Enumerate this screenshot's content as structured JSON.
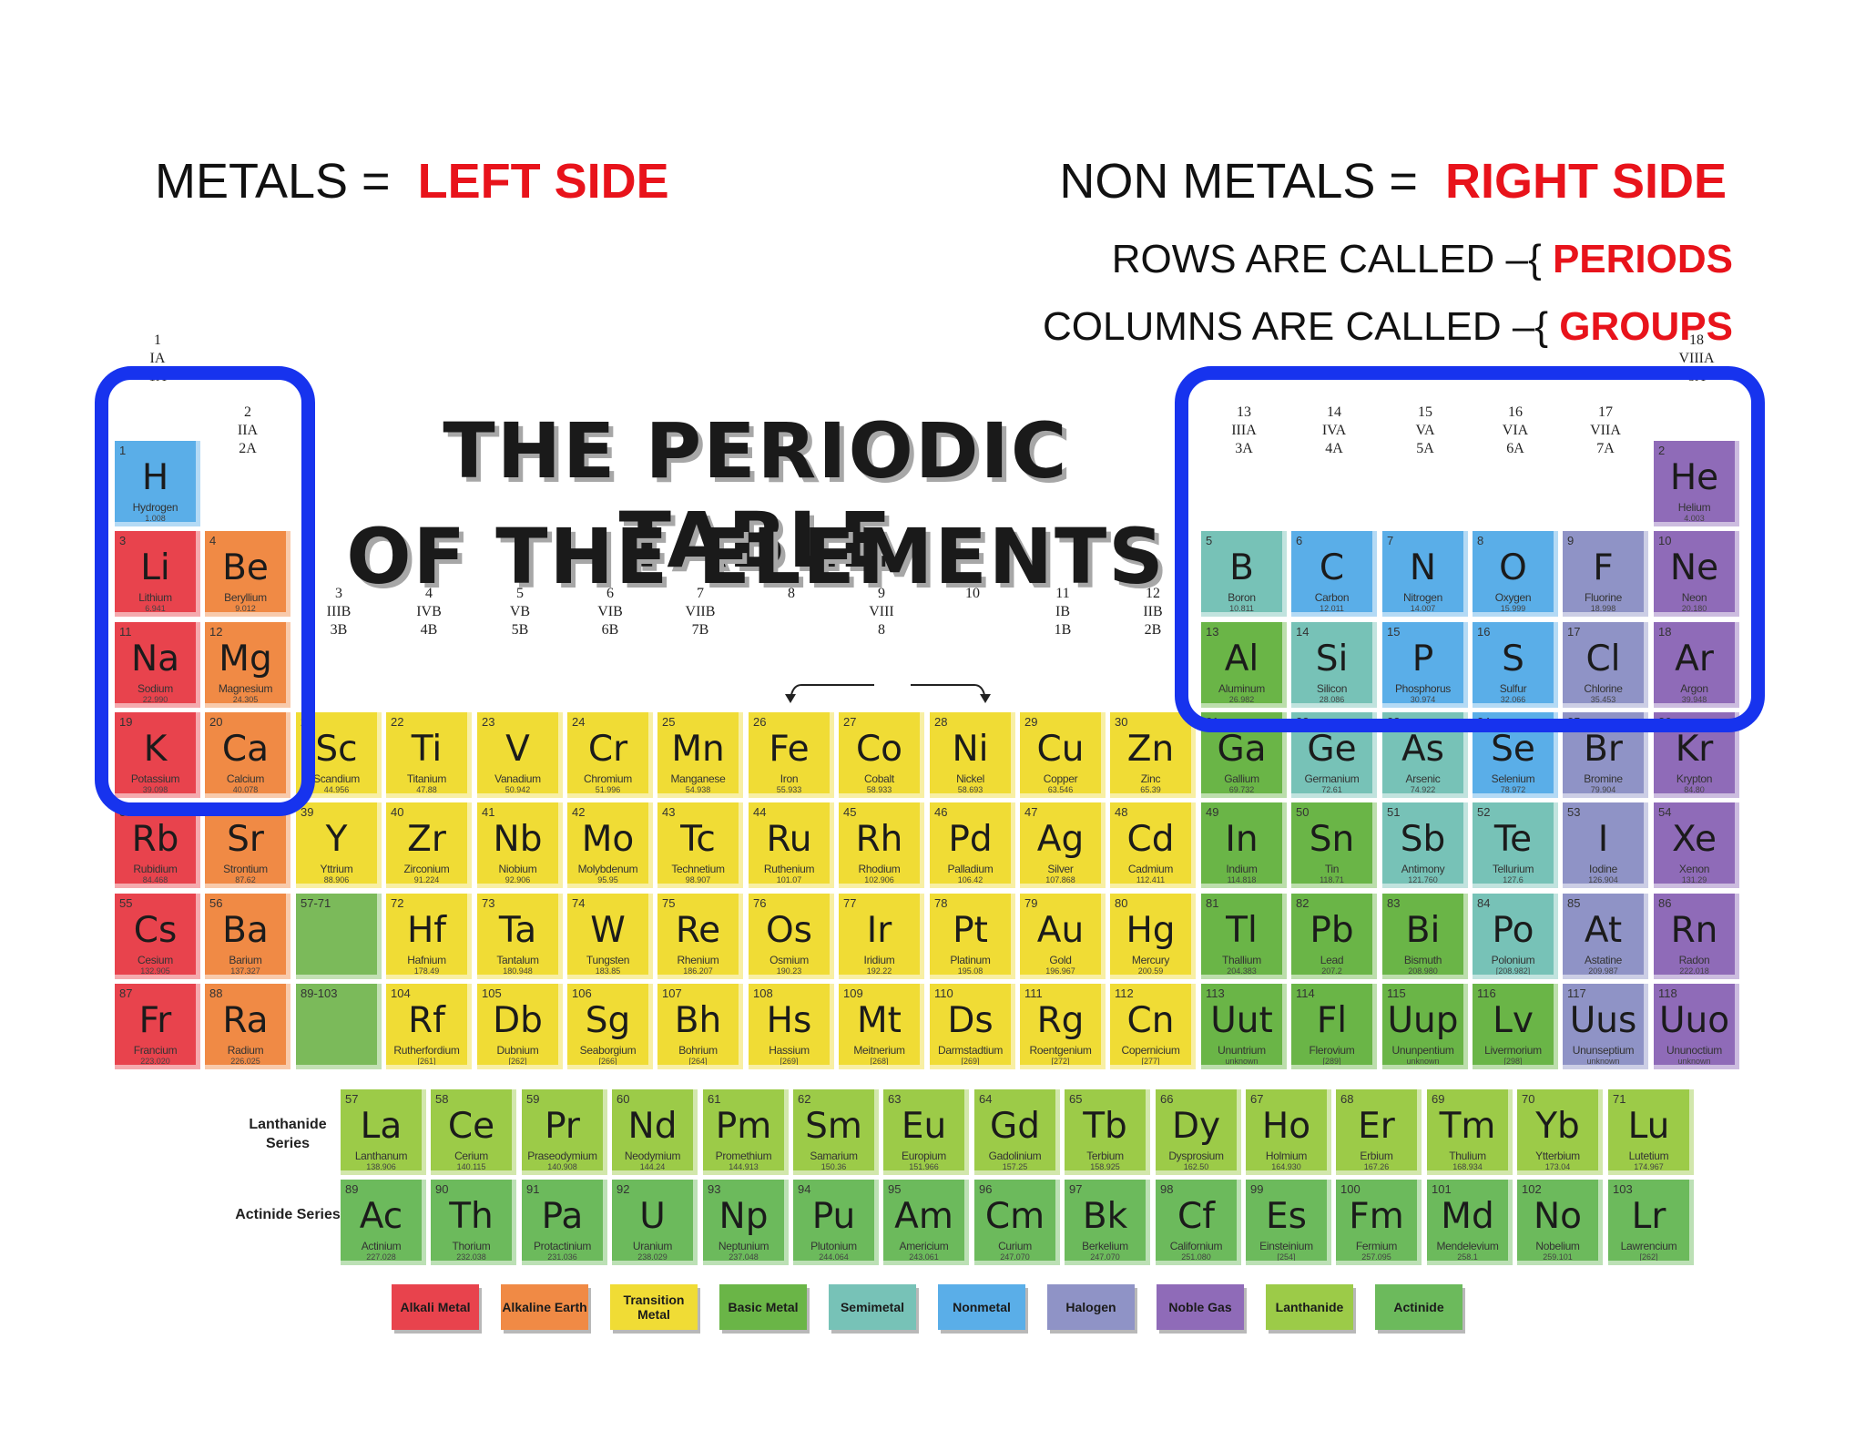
{
  "notes": {
    "metals_prefix": "METALS =",
    "metals_value": "LEFT SIDE",
    "nonmetals_prefix": "NON METALS =",
    "nonmetals_value": "RIGHT SIDE",
    "rows_prefix": "ROWS ARE CALLED –{",
    "rows_value": "PERIODS",
    "cols_prefix": "COLUMNS ARE CALLED –{",
    "cols_value": "GROUPS"
  },
  "title_line1": "THE PERIODIC TABLE",
  "title_line2": "OF THE ELEMENTS",
  "category_colors": {
    "alkali": "#e8434d",
    "alkaline": "#f08a45",
    "transition": "#f0dc35",
    "basic": "#6ab547",
    "semimetal": "#77c2b7",
    "nonmetal": "#5aaee8",
    "halogen": "#8f93c6",
    "noble": "#8f6bb8",
    "lanthanide": "#9ccb48",
    "actinide": "#6cba5c",
    "blank": "#7bba5a"
  },
  "group_labels": [
    {
      "col": 1,
      "row": 0,
      "lines": [
        "1",
        "IA",
        "1A"
      ]
    },
    {
      "col": 2,
      "row": 1,
      "lines": [
        "2",
        "IIA",
        "2A"
      ]
    },
    {
      "col": 3,
      "row": 3,
      "lines": [
        "3",
        "IIIB",
        "3B"
      ]
    },
    {
      "col": 4,
      "row": 3,
      "lines": [
        "4",
        "IVB",
        "4B"
      ]
    },
    {
      "col": 5,
      "row": 3,
      "lines": [
        "5",
        "VB",
        "5B"
      ]
    },
    {
      "col": 6,
      "row": 3,
      "lines": [
        "6",
        "VIB",
        "6B"
      ]
    },
    {
      "col": 7,
      "row": 3,
      "lines": [
        "7",
        "VIIB",
        "7B"
      ]
    },
    {
      "col": 8,
      "row": 3,
      "lines": [
        "8",
        "",
        ""
      ]
    },
    {
      "col": 9,
      "row": 3,
      "lines": [
        "9",
        "VIII",
        "8"
      ]
    },
    {
      "col": 10,
      "row": 3,
      "lines": [
        "10",
        "",
        ""
      ]
    },
    {
      "col": 11,
      "row": 3,
      "lines": [
        "11",
        "IB",
        "1B"
      ]
    },
    {
      "col": 12,
      "row": 3,
      "lines": [
        "12",
        "IIB",
        "2B"
      ]
    },
    {
      "col": 13,
      "row": 1,
      "lines": [
        "13",
        "IIIA",
        "3A"
      ]
    },
    {
      "col": 14,
      "row": 1,
      "lines": [
        "14",
        "IVA",
        "4A"
      ]
    },
    {
      "col": 15,
      "row": 1,
      "lines": [
        "15",
        "VA",
        "5A"
      ]
    },
    {
      "col": 16,
      "row": 1,
      "lines": [
        "16",
        "VIA",
        "6A"
      ]
    },
    {
      "col": 17,
      "row": 1,
      "lines": [
        "17",
        "VIIA",
        "7A"
      ]
    },
    {
      "col": 18,
      "row": 0,
      "lines": [
        "18",
        "VIIIA",
        "8A"
      ]
    }
  ],
  "elements": [
    {
      "n": "1",
      "s": "H",
      "name": "Hydrogen",
      "m": "1.008",
      "c": "nonmetal",
      "col": 1,
      "row": 1
    },
    {
      "n": "2",
      "s": "He",
      "name": "Helium",
      "m": "4.003",
      "c": "noble",
      "col": 18,
      "row": 1
    },
    {
      "n": "3",
      "s": "Li",
      "name": "Lithium",
      "m": "6.941",
      "c": "alkali",
      "col": 1,
      "row": 2
    },
    {
      "n": "4",
      "s": "Be",
      "name": "Beryllium",
      "m": "9.012",
      "c": "alkaline",
      "col": 2,
      "row": 2
    },
    {
      "n": "5",
      "s": "B",
      "name": "Boron",
      "m": "10.811",
      "c": "semimetal",
      "col": 13,
      "row": 2
    },
    {
      "n": "6",
      "s": "C",
      "name": "Carbon",
      "m": "12.011",
      "c": "nonmetal",
      "col": 14,
      "row": 2
    },
    {
      "n": "7",
      "s": "N",
      "name": "Nitrogen",
      "m": "14.007",
      "c": "nonmetal",
      "col": 15,
      "row": 2
    },
    {
      "n": "8",
      "s": "O",
      "name": "Oxygen",
      "m": "15.999",
      "c": "nonmetal",
      "col": 16,
      "row": 2
    },
    {
      "n": "9",
      "s": "F",
      "name": "Fluorine",
      "m": "18.998",
      "c": "halogen",
      "col": 17,
      "row": 2
    },
    {
      "n": "10",
      "s": "Ne",
      "name": "Neon",
      "m": "20.180",
      "c": "noble",
      "col": 18,
      "row": 2
    },
    {
      "n": "11",
      "s": "Na",
      "name": "Sodium",
      "m": "22.990",
      "c": "alkali",
      "col": 1,
      "row": 3
    },
    {
      "n": "12",
      "s": "Mg",
      "name": "Magnesium",
      "m": "24.305",
      "c": "alkaline",
      "col": 2,
      "row": 3
    },
    {
      "n": "13",
      "s": "Al",
      "name": "Aluminum",
      "m": "26.982",
      "c": "basic",
      "col": 13,
      "row": 3
    },
    {
      "n": "14",
      "s": "Si",
      "name": "Silicon",
      "m": "28.086",
      "c": "semimetal",
      "col": 14,
      "row": 3
    },
    {
      "n": "15",
      "s": "P",
      "name": "Phosphorus",
      "m": "30.974",
      "c": "nonmetal",
      "col": 15,
      "row": 3
    },
    {
      "n": "16",
      "s": "S",
      "name": "Sulfur",
      "m": "32.066",
      "c": "nonmetal",
      "col": 16,
      "row": 3
    },
    {
      "n": "17",
      "s": "Cl",
      "name": "Chlorine",
      "m": "35.453",
      "c": "halogen",
      "col": 17,
      "row": 3
    },
    {
      "n": "18",
      "s": "Ar",
      "name": "Argon",
      "m": "39.948",
      "c": "noble",
      "col": 18,
      "row": 3
    },
    {
      "n": "19",
      "s": "K",
      "name": "Potassium",
      "m": "39.098",
      "c": "alkali",
      "col": 1,
      "row": 4
    },
    {
      "n": "20",
      "s": "Ca",
      "name": "Calcium",
      "m": "40.078",
      "c": "alkaline",
      "col": 2,
      "row": 4
    },
    {
      "n": "21",
      "s": "Sc",
      "name": "Scandium",
      "m": "44.956",
      "c": "transition",
      "col": 3,
      "row": 4
    },
    {
      "n": "22",
      "s": "Ti",
      "name": "Titanium",
      "m": "47.88",
      "c": "transition",
      "col": 4,
      "row": 4
    },
    {
      "n": "23",
      "s": "V",
      "name": "Vanadium",
      "m": "50.942",
      "c": "transition",
      "col": 5,
      "row": 4
    },
    {
      "n": "24",
      "s": "Cr",
      "name": "Chromium",
      "m": "51.996",
      "c": "transition",
      "col": 6,
      "row": 4
    },
    {
      "n": "25",
      "s": "Mn",
      "name": "Manganese",
      "m": "54.938",
      "c": "transition",
      "col": 7,
      "row": 4
    },
    {
      "n": "26",
      "s": "Fe",
      "name": "Iron",
      "m": "55.933",
      "c": "transition",
      "col": 8,
      "row": 4
    },
    {
      "n": "27",
      "s": "Co",
      "name": "Cobalt",
      "m": "58.933",
      "c": "transition",
      "col": 9,
      "row": 4
    },
    {
      "n": "28",
      "s": "Ni",
      "name": "Nickel",
      "m": "58.693",
      "c": "transition",
      "col": 10,
      "row": 4
    },
    {
      "n": "29",
      "s": "Cu",
      "name": "Copper",
      "m": "63.546",
      "c": "transition",
      "col": 11,
      "row": 4
    },
    {
      "n": "30",
      "s": "Zn",
      "name": "Zinc",
      "m": "65.39",
      "c": "transition",
      "col": 12,
      "row": 4
    },
    {
      "n": "31",
      "s": "Ga",
      "name": "Gallium",
      "m": "69.732",
      "c": "basic",
      "col": 13,
      "row": 4
    },
    {
      "n": "32",
      "s": "Ge",
      "name": "Germanium",
      "m": "72.61",
      "c": "semimetal",
      "col": 14,
      "row": 4
    },
    {
      "n": "33",
      "s": "As",
      "name": "Arsenic",
      "m": "74.922",
      "c": "semimetal",
      "col": 15,
      "row": 4
    },
    {
      "n": "34",
      "s": "Se",
      "name": "Selenium",
      "m": "78.972",
      "c": "nonmetal",
      "col": 16,
      "row": 4
    },
    {
      "n": "35",
      "s": "Br",
      "name": "Bromine",
      "m": "79.904",
      "c": "halogen",
      "col": 17,
      "row": 4
    },
    {
      "n": "36",
      "s": "Kr",
      "name": "Krypton",
      "m": "84.80",
      "c": "noble",
      "col": 18,
      "row": 4
    },
    {
      "n": "37",
      "s": "Rb",
      "name": "Rubidium",
      "m": "84.468",
      "c": "alkali",
      "col": 1,
      "row": 5
    },
    {
      "n": "38",
      "s": "Sr",
      "name": "Strontium",
      "m": "87.62",
      "c": "alkaline",
      "col": 2,
      "row": 5
    },
    {
      "n": "39",
      "s": "Y",
      "name": "Yttrium",
      "m": "88.906",
      "c": "transition",
      "col": 3,
      "row": 5
    },
    {
      "n": "40",
      "s": "Zr",
      "name": "Zirconium",
      "m": "91.224",
      "c": "transition",
      "col": 4,
      "row": 5
    },
    {
      "n": "41",
      "s": "Nb",
      "name": "Niobium",
      "m": "92.906",
      "c": "transition",
      "col": 5,
      "row": 5
    },
    {
      "n": "42",
      "s": "Mo",
      "name": "Molybdenum",
      "m": "95.95",
      "c": "transition",
      "col": 6,
      "row": 5
    },
    {
      "n": "43",
      "s": "Tc",
      "name": "Technetium",
      "m": "98.907",
      "c": "transition",
      "col": 7,
      "row": 5
    },
    {
      "n": "44",
      "s": "Ru",
      "name": "Ruthenium",
      "m": "101.07",
      "c": "transition",
      "col": 8,
      "row": 5
    },
    {
      "n": "45",
      "s": "Rh",
      "name": "Rhodium",
      "m": "102.906",
      "c": "transition",
      "col": 9,
      "row": 5
    },
    {
      "n": "46",
      "s": "Pd",
      "name": "Palladium",
      "m": "106.42",
      "c": "transition",
      "col": 10,
      "row": 5
    },
    {
      "n": "47",
      "s": "Ag",
      "name": "Silver",
      "m": "107.868",
      "c": "transition",
      "col": 11,
      "row": 5
    },
    {
      "n": "48",
      "s": "Cd",
      "name": "Cadmium",
      "m": "112.411",
      "c": "transition",
      "col": 12,
      "row": 5
    },
    {
      "n": "49",
      "s": "In",
      "name": "Indium",
      "m": "114.818",
      "c": "basic",
      "col": 13,
      "row": 5
    },
    {
      "n": "50",
      "s": "Sn",
      "name": "Tin",
      "m": "118.71",
      "c": "basic",
      "col": 14,
      "row": 5
    },
    {
      "n": "51",
      "s": "Sb",
      "name": "Antimony",
      "m": "121.760",
      "c": "semimetal",
      "col": 15,
      "row": 5
    },
    {
      "n": "52",
      "s": "Te",
      "name": "Tellurium",
      "m": "127.6",
      "c": "semimetal",
      "col": 16,
      "row": 5
    },
    {
      "n": "53",
      "s": "I",
      "name": "Iodine",
      "m": "126.904",
      "c": "halogen",
      "col": 17,
      "row": 5
    },
    {
      "n": "54",
      "s": "Xe",
      "name": "Xenon",
      "m": "131.29",
      "c": "noble",
      "col": 18,
      "row": 5
    },
    {
      "n": "55",
      "s": "Cs",
      "name": "Cesium",
      "m": "132.905",
      "c": "alkali",
      "col": 1,
      "row": 6
    },
    {
      "n": "56",
      "s": "Ba",
      "name": "Barium",
      "m": "137.327",
      "c": "alkaline",
      "col": 2,
      "row": 6
    },
    {
      "n": "57-71",
      "s": "",
      "name": "",
      "m": "",
      "c": "blank",
      "col": 3,
      "row": 6
    },
    {
      "n": "72",
      "s": "Hf",
      "name": "Hafnium",
      "m": "178.49",
      "c": "transition",
      "col": 4,
      "row": 6
    },
    {
      "n": "73",
      "s": "Ta",
      "name": "Tantalum",
      "m": "180.948",
      "c": "transition",
      "col": 5,
      "row": 6
    },
    {
      "n": "74",
      "s": "W",
      "name": "Tungsten",
      "m": "183.85",
      "c": "transition",
      "col": 6,
      "row": 6
    },
    {
      "n": "75",
      "s": "Re",
      "name": "Rhenium",
      "m": "186.207",
      "c": "transition",
      "col": 7,
      "row": 6
    },
    {
      "n": "76",
      "s": "Os",
      "name": "Osmium",
      "m": "190.23",
      "c": "transition",
      "col": 8,
      "row": 6
    },
    {
      "n": "77",
      "s": "Ir",
      "name": "Iridium",
      "m": "192.22",
      "c": "transition",
      "col": 9,
      "row": 6
    },
    {
      "n": "78",
      "s": "Pt",
      "name": "Platinum",
      "m": "195.08",
      "c": "transition",
      "col": 10,
      "row": 6
    },
    {
      "n": "79",
      "s": "Au",
      "name": "Gold",
      "m": "196.967",
      "c": "transition",
      "col": 11,
      "row": 6
    },
    {
      "n": "80",
      "s": "Hg",
      "name": "Mercury",
      "m": "200.59",
      "c": "transition",
      "col": 12,
      "row": 6
    },
    {
      "n": "81",
      "s": "Tl",
      "name": "Thallium",
      "m": "204.383",
      "c": "basic",
      "col": 13,
      "row": 6
    },
    {
      "n": "82",
      "s": "Pb",
      "name": "Lead",
      "m": "207.2",
      "c": "basic",
      "col": 14,
      "row": 6
    },
    {
      "n": "83",
      "s": "Bi",
      "name": "Bismuth",
      "m": "208.980",
      "c": "basic",
      "col": 15,
      "row": 6
    },
    {
      "n": "84",
      "s": "Po",
      "name": "Polonium",
      "m": "[208.982]",
      "c": "semimetal",
      "col": 16,
      "row": 6
    },
    {
      "n": "85",
      "s": "At",
      "name": "Astatine",
      "m": "209.987",
      "c": "halogen",
      "col": 17,
      "row": 6
    },
    {
      "n": "86",
      "s": "Rn",
      "name": "Radon",
      "m": "222.018",
      "c": "noble",
      "col": 18,
      "row": 6
    },
    {
      "n": "87",
      "s": "Fr",
      "name": "Francium",
      "m": "223.020",
      "c": "alkali",
      "col": 1,
      "row": 7
    },
    {
      "n": "88",
      "s": "Ra",
      "name": "Radium",
      "m": "226.025",
      "c": "alkaline",
      "col": 2,
      "row": 7
    },
    {
      "n": "89-103",
      "s": "",
      "name": "",
      "m": "",
      "c": "blank",
      "col": 3,
      "row": 7
    },
    {
      "n": "104",
      "s": "Rf",
      "name": "Rutherfordium",
      "m": "[261]",
      "c": "transition",
      "col": 4,
      "row": 7
    },
    {
      "n": "105",
      "s": "Db",
      "name": "Dubnium",
      "m": "[262]",
      "c": "transition",
      "col": 5,
      "row": 7
    },
    {
      "n": "106",
      "s": "Sg",
      "name": "Seaborgium",
      "m": "[266]",
      "c": "transition",
      "col": 6,
      "row": 7
    },
    {
      "n": "107",
      "s": "Bh",
      "name": "Bohrium",
      "m": "[264]",
      "c": "transition",
      "col": 7,
      "row": 7
    },
    {
      "n": "108",
      "s": "Hs",
      "name": "Hassium",
      "m": "[269]",
      "c": "transition",
      "col": 8,
      "row": 7
    },
    {
      "n": "109",
      "s": "Mt",
      "name": "Meitnerium",
      "m": "[268]",
      "c": "transition",
      "col": 9,
      "row": 7
    },
    {
      "n": "110",
      "s": "Ds",
      "name": "Darmstadtium",
      "m": "[269]",
      "c": "transition",
      "col": 10,
      "row": 7
    },
    {
      "n": "111",
      "s": "Rg",
      "name": "Roentgenium",
      "m": "[272]",
      "c": "transition",
      "col": 11,
      "row": 7
    },
    {
      "n": "112",
      "s": "Cn",
      "name": "Copernicium",
      "m": "[277]",
      "c": "transition",
      "col": 12,
      "row": 7
    },
    {
      "n": "113",
      "s": "Uut",
      "name": "Ununtrium",
      "m": "unknown",
      "c": "basic",
      "col": 13,
      "row": 7
    },
    {
      "n": "114",
      "s": "Fl",
      "name": "Flerovium",
      "m": "[289]",
      "c": "basic",
      "col": 14,
      "row": 7
    },
    {
      "n": "115",
      "s": "Uup",
      "name": "Ununpentium",
      "m": "unknown",
      "c": "basic",
      "col": 15,
      "row": 7
    },
    {
      "n": "116",
      "s": "Lv",
      "name": "Livermorium",
      "m": "[298]",
      "c": "basic",
      "col": 16,
      "row": 7
    },
    {
      "n": "117",
      "s": "Uus",
      "name": "Ununseptium",
      "m": "unknown",
      "c": "halogen",
      "col": 17,
      "row": 7
    },
    {
      "n": "118",
      "s": "Uuo",
      "name": "Ununoctium",
      "m": "unknown",
      "c": "noble",
      "col": 18,
      "row": 7
    }
  ],
  "lanthanide_label": "Lanthanide Series",
  "actinide_label": "Actinide Series",
  "lanthanides": [
    {
      "n": "57",
      "s": "La",
      "name": "Lanthanum",
      "m": "138.906"
    },
    {
      "n": "58",
      "s": "Ce",
      "name": "Cerium",
      "m": "140.115"
    },
    {
      "n": "59",
      "s": "Pr",
      "name": "Praseodymium",
      "m": "140.908"
    },
    {
      "n": "60",
      "s": "Nd",
      "name": "Neodymium",
      "m": "144.24"
    },
    {
      "n": "61",
      "s": "Pm",
      "name": "Promethium",
      "m": "144.913"
    },
    {
      "n": "62",
      "s": "Sm",
      "name": "Samarium",
      "m": "150.36"
    },
    {
      "n": "63",
      "s": "Eu",
      "name": "Europium",
      "m": "151.966"
    },
    {
      "n": "64",
      "s": "Gd",
      "name": "Gadolinium",
      "m": "157.25"
    },
    {
      "n": "65",
      "s": "Tb",
      "name": "Terbium",
      "m": "158.925"
    },
    {
      "n": "66",
      "s": "Dy",
      "name": "Dysprosium",
      "m": "162.50"
    },
    {
      "n": "67",
      "s": "Ho",
      "name": "Holmium",
      "m": "164.930"
    },
    {
      "n": "68",
      "s": "Er",
      "name": "Erbium",
      "m": "167.26"
    },
    {
      "n": "69",
      "s": "Tm",
      "name": "Thulium",
      "m": "168.934"
    },
    {
      "n": "70",
      "s": "Yb",
      "name": "Ytterbium",
      "m": "173.04"
    },
    {
      "n": "71",
      "s": "Lu",
      "name": "Lutetium",
      "m": "174.967"
    }
  ],
  "actinides": [
    {
      "n": "89",
      "s": "Ac",
      "name": "Actinium",
      "m": "227.028"
    },
    {
      "n": "90",
      "s": "Th",
      "name": "Thorium",
      "m": "232.038"
    },
    {
      "n": "91",
      "s": "Pa",
      "name": "Protactinium",
      "m": "231.036"
    },
    {
      "n": "92",
      "s": "U",
      "name": "Uranium",
      "m": "238.029"
    },
    {
      "n": "93",
      "s": "Np",
      "name": "Neptunium",
      "m": "237.048"
    },
    {
      "n": "94",
      "s": "Pu",
      "name": "Plutonium",
      "m": "244.064"
    },
    {
      "n": "95",
      "s": "Am",
      "name": "Americium",
      "m": "243.061"
    },
    {
      "n": "96",
      "s": "Cm",
      "name": "Curium",
      "m": "247.070"
    },
    {
      "n": "97",
      "s": "Bk",
      "name": "Berkelium",
      "m": "247.070"
    },
    {
      "n": "98",
      "s": "Cf",
      "name": "Californium",
      "m": "251.080"
    },
    {
      "n": "99",
      "s": "Es",
      "name": "Einsteinium",
      "m": "[254]"
    },
    {
      "n": "100",
      "s": "Fm",
      "name": "Fermium",
      "m": "257.095"
    },
    {
      "n": "101",
      "s": "Md",
      "name": "Mendelevium",
      "m": "258.1"
    },
    {
      "n": "102",
      "s": "No",
      "name": "Nobelium",
      "m": "259.101"
    },
    {
      "n": "103",
      "s": "Lr",
      "name": "Lawrencium",
      "m": "[262]"
    }
  ],
  "legend": [
    {
      "label": "Alkali Metal",
      "c": "alkali"
    },
    {
      "label": "Alkaline Earth",
      "c": "alkaline"
    },
    {
      "label": "Transition Metal",
      "c": "transition"
    },
    {
      "label": "Basic Metal",
      "c": "basic"
    },
    {
      "label": "Semimetal",
      "c": "semimetal"
    },
    {
      "label": "Nonmetal",
      "c": "nonmetal"
    },
    {
      "label": "Halogen",
      "c": "halogen"
    },
    {
      "label": "Noble Gas",
      "c": "noble"
    },
    {
      "label": "Lanthanide",
      "c": "lanthanide"
    },
    {
      "label": "Actinide",
      "c": "actinide"
    }
  ]
}
